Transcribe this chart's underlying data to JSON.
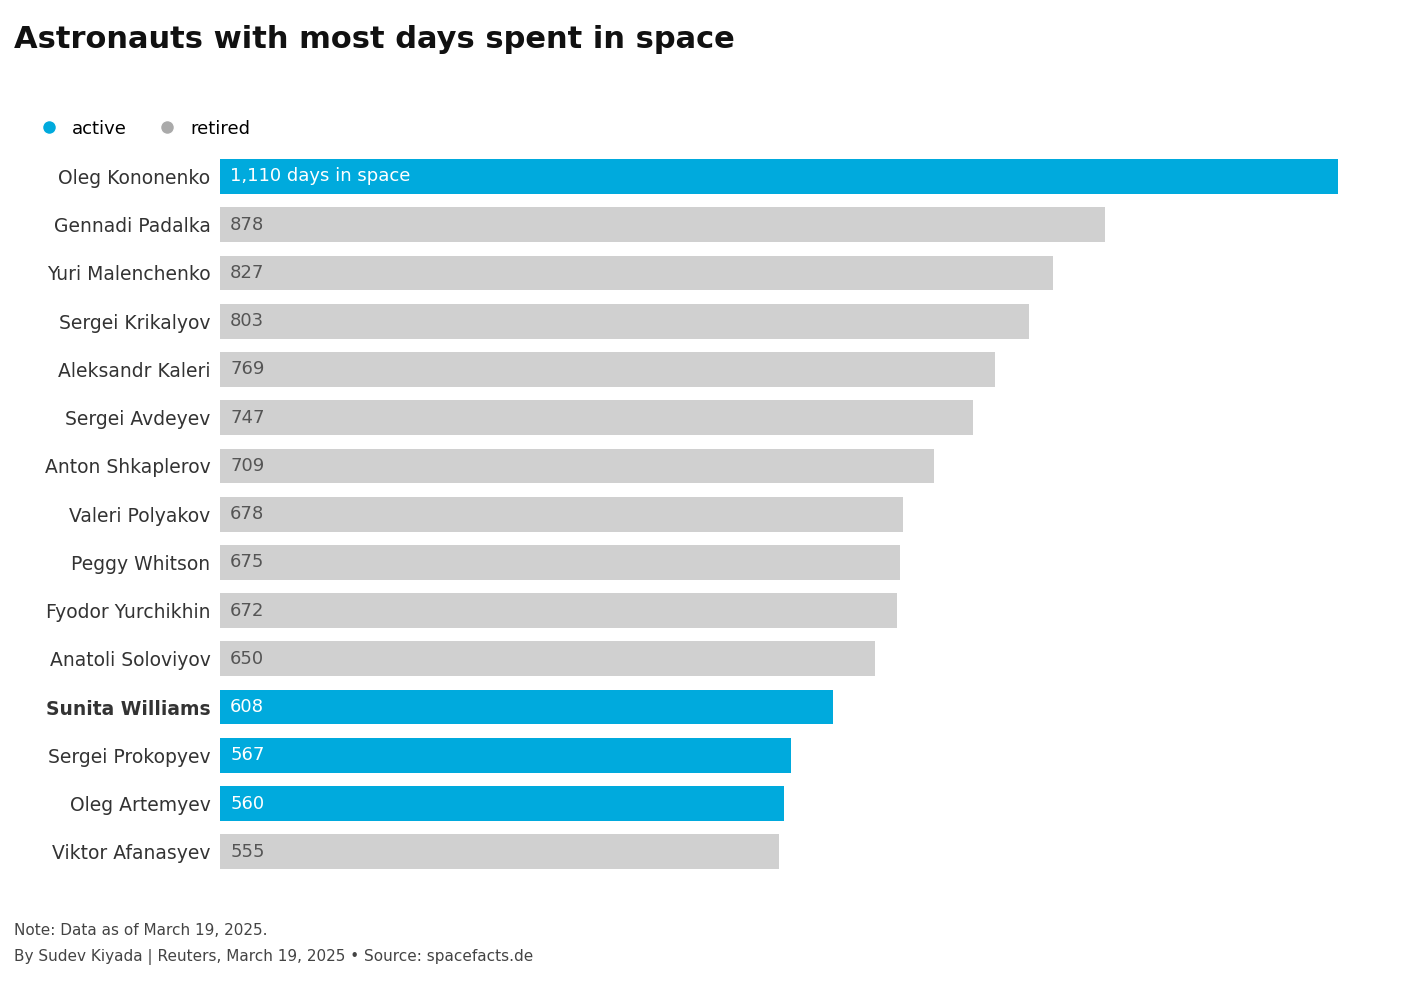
{
  "title": "Astronauts with most days spent in space",
  "astronauts": [
    {
      "name": "Oleg Kononenko",
      "days": 1110,
      "active": true,
      "bold": false
    },
    {
      "name": "Gennadi Padalka",
      "days": 878,
      "active": false,
      "bold": false
    },
    {
      "name": "Yuri Malenchenko",
      "days": 827,
      "active": false,
      "bold": false
    },
    {
      "name": "Sergei Krikalyov",
      "days": 803,
      "active": false,
      "bold": false
    },
    {
      "name": "Aleksandr Kaleri",
      "days": 769,
      "active": false,
      "bold": false
    },
    {
      "name": "Sergei Avdeyev",
      "days": 747,
      "active": false,
      "bold": false
    },
    {
      "name": "Anton Shkaplerov",
      "days": 709,
      "active": false,
      "bold": false
    },
    {
      "name": "Valeri Polyakov",
      "days": 678,
      "active": false,
      "bold": false
    },
    {
      "name": "Peggy Whitson",
      "days": 675,
      "active": false,
      "bold": false
    },
    {
      "name": "Fyodor Yurchikhin",
      "days": 672,
      "active": false,
      "bold": false
    },
    {
      "name": "Anatoli Soloviyov",
      "days": 650,
      "active": false,
      "bold": false
    },
    {
      "name": "Sunita Williams",
      "days": 608,
      "active": true,
      "bold": true
    },
    {
      "name": "Sergei Prokopyev",
      "days": 567,
      "active": true,
      "bold": false
    },
    {
      "name": "Oleg Artemyev",
      "days": 560,
      "active": true,
      "bold": false
    },
    {
      "name": "Viktor Afanasyev",
      "days": 555,
      "active": false,
      "bold": false
    }
  ],
  "active_color": "#00aadd",
  "retired_color": "#d0d0d0",
  "bar_label_color_active": "#ffffff",
  "bar_label_color_retired": "#555555",
  "first_bar_label": "1,110 days in space",
  "background_color": "#ffffff",
  "title_fontsize": 22,
  "name_fontsize": 13.5,
  "bar_value_fontsize": 13,
  "legend_active_color": "#00aadd",
  "legend_retired_color": "#aaaaaa",
  "note_text": "Note: Data as of March 19, 2025.",
  "credit_text": "By Sudev Kiyada | Reuters, March 19, 2025 • Source: spacefacts.de"
}
